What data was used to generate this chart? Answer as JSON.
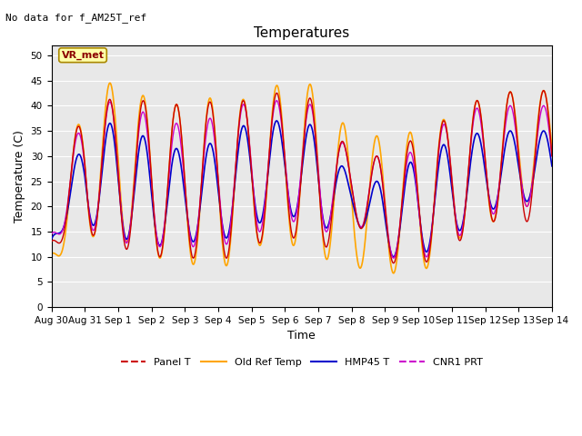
{
  "title": "Temperatures",
  "xlabel": "Time",
  "ylabel": "Temperature (C)",
  "top_left_text": "No data for f_AM25T_ref",
  "annotation_text": "VR_met",
  "ylim": [
    0,
    52
  ],
  "yticks": [
    0,
    5,
    10,
    15,
    20,
    25,
    30,
    35,
    40,
    45,
    50
  ],
  "xtick_labels": [
    "Aug 30",
    "Aug 31",
    "Sep 1",
    "Sep 2",
    "Sep 3",
    "Sep 4",
    "Sep 5",
    "Sep 6",
    "Sep 7",
    "Sep 8",
    "Sep 9",
    "Sep 10",
    "Sep 11",
    "Sep 12",
    "Sep 13",
    "Sep 14"
  ],
  "n_days": 15,
  "panel_maxes": [
    14,
    42,
    41,
    41,
    40,
    41,
    41,
    43,
    41,
    30,
    30,
    34,
    38,
    42,
    43
  ],
  "panel_mins": [
    12,
    15,
    12,
    10,
    10,
    9,
    12,
    15,
    10,
    18,
    9,
    8,
    12,
    17,
    17
  ],
  "old_maxes": [
    12,
    43,
    45,
    41,
    40,
    42,
    41,
    45,
    44,
    34,
    34,
    35,
    38,
    42,
    43
  ],
  "old_mins": [
    9,
    14,
    14,
    10,
    9,
    7,
    12,
    13,
    10,
    8,
    7,
    6,
    13,
    16,
    20
  ],
  "hmp_maxes": [
    13,
    35,
    37,
    33,
    31,
    33,
    37,
    37,
    36,
    25,
    25,
    30,
    33,
    35,
    35
  ],
  "hmp_mins": [
    14,
    17,
    14,
    12,
    13,
    13,
    16,
    19,
    15,
    18,
    10,
    10,
    14,
    19,
    21
  ],
  "cnr_maxes": [
    15,
    40,
    41,
    38,
    36,
    38,
    41,
    41,
    40,
    30,
    30,
    31,
    38,
    40,
    40
  ],
  "cnr_mins": [
    14,
    16,
    13,
    12,
    12,
    12,
    14,
    18,
    14,
    18,
    10,
    9,
    13,
    18,
    20
  ],
  "legend": [
    {
      "label": "Panel T",
      "color": "#CC0000",
      "linestyle": "-"
    },
    {
      "label": "Old Ref Temp",
      "color": "#FFA500",
      "linestyle": "-"
    },
    {
      "label": "HMP45 T",
      "color": "#0000CC",
      "linestyle": "-"
    },
    {
      "label": "CNR1 PRT",
      "color": "#CC00CC",
      "linestyle": "-"
    }
  ],
  "bg_color": "#E8E8E8",
  "grid_color": "white",
  "annotation_bg": "#FFFFAA",
  "annotation_border": "#AA8800",
  "figsize": [
    6.4,
    4.8
  ],
  "dpi": 100
}
